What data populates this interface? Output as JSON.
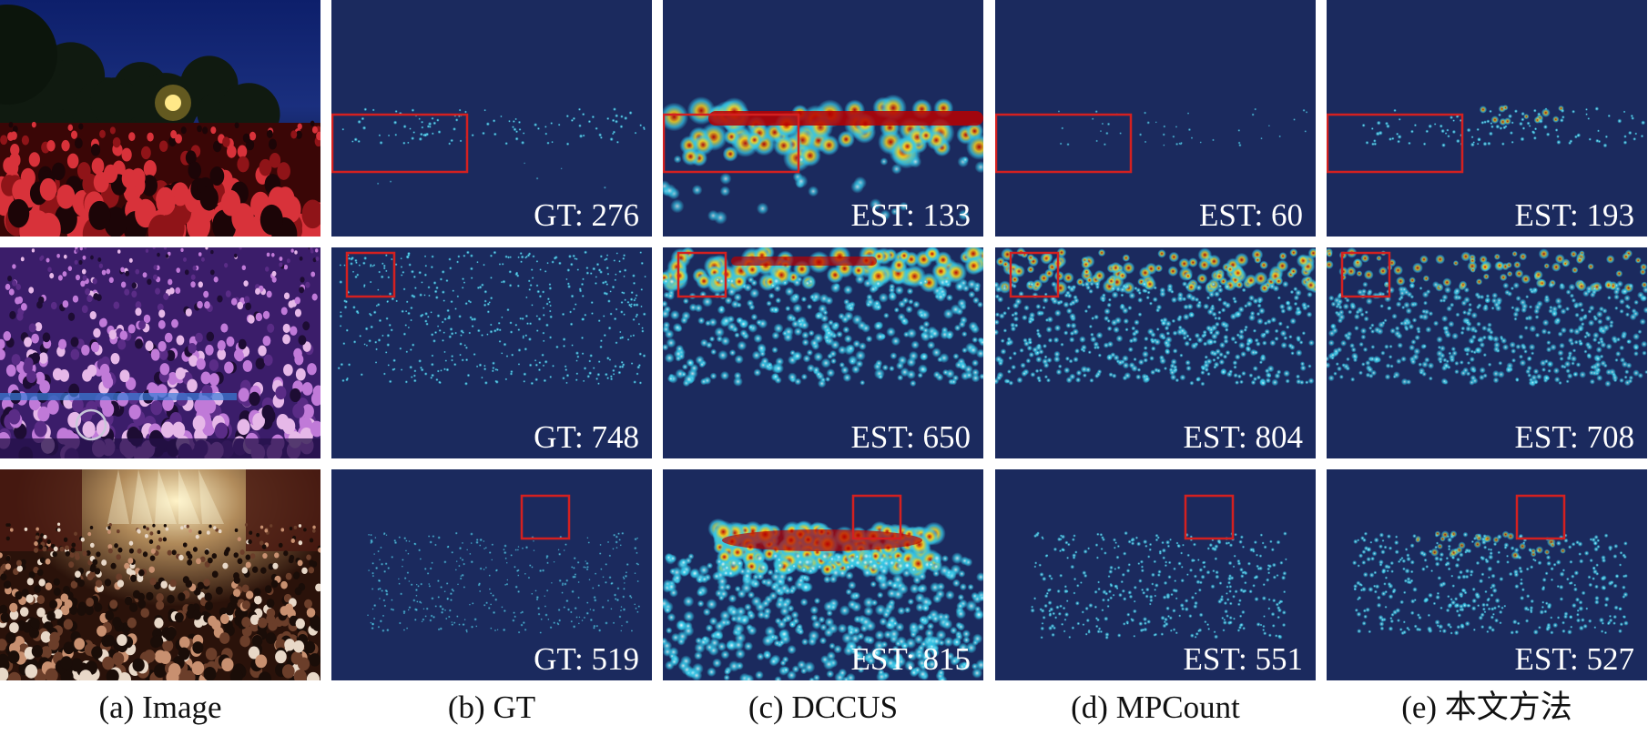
{
  "captions": [
    "(a) Image",
    "(b) GT",
    "(c) DCCUS",
    "(d) MPCount",
    "(e) 本文方法"
  ],
  "rows": [
    {
      "scene": "outdoor-night-crowd",
      "counts": [
        "GT: 276",
        "EST: 133",
        "EST: 60",
        "EST: 193"
      ]
    },
    {
      "scene": "concert-hall-audience",
      "counts": [
        "GT: 748",
        "EST: 650",
        "EST: 804",
        "EST: 708"
      ]
    },
    {
      "scene": "stage-concert-crowd",
      "counts": [
        "GT: 519",
        "EST: 815",
        "EST: 551",
        "EST: 527"
      ]
    }
  ],
  "colors": {
    "density_background": "#1b2a5e",
    "highlight_box": "#d42020",
    "count_text": "#ffffff",
    "heat_high": "#b80000",
    "heat_mid": "#f5d020",
    "heat_low": "#35c8e8"
  }
}
